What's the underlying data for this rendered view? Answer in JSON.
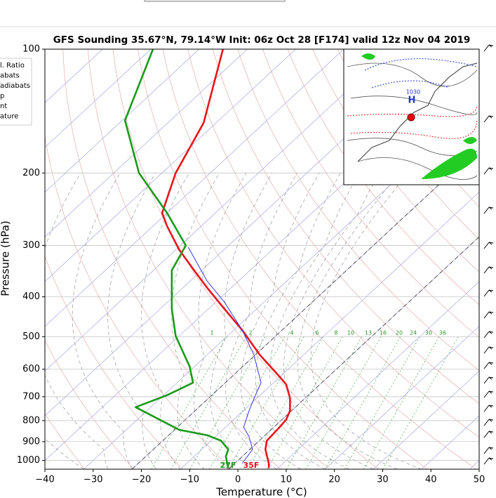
{
  "chart_data": {
    "type": "skewt",
    "title": "GFS Sounding 35.67°N, 79.14°W Init: 06z Oct 28 [F174] valid 12z Nov 04 2019",
    "x_label": "Temperature (°C)",
    "y_label": "Pressure (hPa)",
    "xlim": [
      -40,
      50
    ],
    "xticks": [
      {
        "value": -40,
        "label": "−40"
      },
      {
        "value": -30,
        "label": "−30"
      },
      {
        "value": -20,
        "label": "−20"
      },
      {
        "value": -10,
        "label": "−10"
      },
      0,
      10,
      20,
      30,
      40,
      50
    ],
    "ylim": [
      1050,
      100
    ],
    "log_scale": true,
    "yticks": [
      100,
      200,
      300,
      400,
      500,
      600,
      700,
      800,
      900,
      1000
    ],
    "legend": [
      "l. Ratio",
      "abats",
      "adiabats",
      "p",
      "nt",
      "ature"
    ],
    "mixing_ratio_labels": [
      "1",
      "2",
      "4",
      "6",
      "8",
      "10",
      "13",
      "16",
      "20",
      "24",
      "30",
      "36"
    ],
    "annotations": [
      "27F",
      "35F"
    ],
    "inset": {
      "high": "H",
      "isobar": "1030"
    },
    "series": [
      {
        "name": "Temperature",
        "color": "#e8141a",
        "x": [
          6.4,
          6.4,
          5.7,
          6.0,
          8.4,
          10.0,
          10.8,
          10.8,
          10.0,
          7.8,
          4.5,
          0.9,
          -2.8,
          -6.4,
          -9.3,
          -12.2,
          -14.7,
          -15.7,
          -12.9,
          -9.9,
          -7.1,
          -3.1
        ],
        "pressure": [
          1044,
          1016,
          940,
          895,
          836,
          796,
          757,
          705,
          653,
          610,
          553,
          482,
          428,
          380,
          342,
          307,
          269,
          250,
          200,
          173,
          151,
          100
        ]
      },
      {
        "name": "Dewpoint",
        "color": "#1a9a1a",
        "x": [
          -2.0,
          -2.5,
          -2.0,
          -3.5,
          -6.4,
          -12.2,
          -21.2,
          -14.7,
          -9.3,
          -10.0,
          -12.9,
          -13.7,
          -13.7,
          -10.8,
          -14.7,
          -20.5,
          -23.4,
          -17.6
        ],
        "pressure": [
          1044,
          978,
          940,
          895,
          868,
          842,
          742,
          694,
          647,
          591,
          498,
          428,
          345,
          300,
          250,
          200,
          149,
          100
        ]
      },
      {
        "name": "Parcel",
        "color": "#3a3ae0",
        "x": [
          0.9,
          3.05,
          2.3,
          1.2,
          2.3,
          3.8,
          4.8,
          3.3,
          0.9,
          -2.8,
          -6.4,
          -10.3
        ],
        "pressure": [
          1016,
          940,
          875,
          830,
          757,
          687,
          647,
          553,
          482,
          412,
          366,
          303
        ]
      }
    ]
  }
}
